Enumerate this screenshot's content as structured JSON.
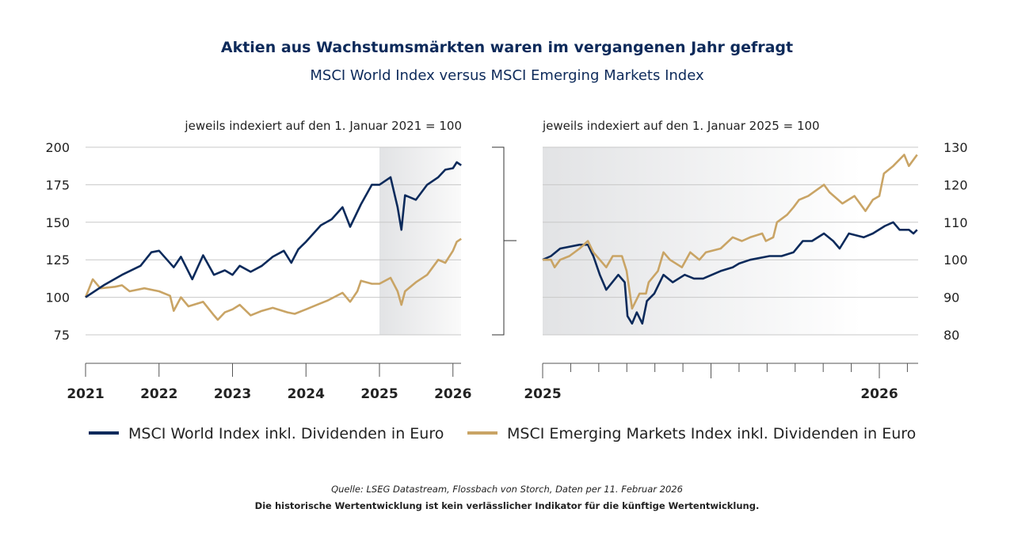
{
  "title": "Aktien aus Wachstumsmärkten waren im vergangenen Jahr gefragt",
  "subtitle": "MSCI World Index versus MSCI Emerging Markets Index",
  "colors": {
    "world": "#0b2a5b",
    "em": "#c9a465",
    "title": "#0d2a5a",
    "grid": "#c8c8c8"
  },
  "legend": {
    "world": "MSCI World Index inkl. Dividenden in Euro",
    "em": "MSCI Emerging Markets Index inkl. Dividenden in Euro"
  },
  "footer": {
    "source": "Quelle: LSEG Datastream, Flossbach von Storch, Daten per 11. Februar 2026",
    "disclaimer": "Die historische Wertentwicklung ist kein verlässlicher Indikator für die künftige Wertentwicklung."
  },
  "chart_data": [
    {
      "type": "line",
      "note": "jeweils indexiert auf den 1. Januar 2021 = 100",
      "ylim": [
        75,
        200
      ],
      "yticks": [
        "200",
        "175",
        "150",
        "125",
        "100",
        "75"
      ],
      "xticks": [
        "2021",
        "2022",
        "2023",
        "2024",
        "2025",
        "2026"
      ],
      "x_range": [
        "2021-01-01",
        "2026-02-11"
      ],
      "highlight_from": "2025-01-01",
      "grid": true,
      "series": [
        {
          "name": "MSCI World Index inkl. Dividenden in Euro",
          "key": "world",
          "x": [
            "2021-01-01",
            "2021-04-01",
            "2021-07-01",
            "2021-10-01",
            "2021-11-24",
            "2022-01-01",
            "2022-03-15",
            "2022-04-20",
            "2022-06-15",
            "2022-08-08",
            "2022-10-01",
            "2022-11-24",
            "2023-01-01",
            "2023-02-06",
            "2023-04-01",
            "2023-05-27",
            "2023-07-20",
            "2023-09-13",
            "2023-10-20",
            "2023-11-24",
            "2024-01-01",
            "2024-03-15",
            "2024-05-08",
            "2024-07-01",
            "2024-08-08",
            "2024-10-01",
            "2024-11-24",
            "2025-01-01",
            "2025-02-25",
            "2025-04-01",
            "2025-04-20",
            "2025-05-08",
            "2025-07-01",
            "2025-08-26",
            "2025-10-20",
            "2025-11-24",
            "2026-01-01",
            "2026-01-20",
            "2026-02-11"
          ],
          "y": [
            100,
            108,
            115,
            121,
            130,
            131,
            120,
            127,
            112,
            128,
            115,
            118,
            115,
            121,
            117,
            121,
            127,
            131,
            123,
            132,
            137,
            148,
            152,
            160,
            147,
            162,
            175,
            175,
            180,
            160,
            145,
            168,
            165,
            175,
            180,
            185,
            186,
            190,
            188
          ]
        },
        {
          "name": "MSCI Emerging Markets Index inkl. Dividenden in Euro",
          "key": "em",
          "x": [
            "2021-01-01",
            "2021-02-06",
            "2021-03-15",
            "2021-05-27",
            "2021-07-01",
            "2021-08-08",
            "2021-10-20",
            "2022-01-01",
            "2022-02-25",
            "2022-03-15",
            "2022-04-20",
            "2022-05-27",
            "2022-08-08",
            "2022-10-01",
            "2022-10-20",
            "2022-11-24",
            "2023-01-01",
            "2023-02-06",
            "2023-04-01",
            "2023-05-27",
            "2023-07-20",
            "2023-10-01",
            "2023-11-06",
            "2024-01-01",
            "2024-02-25",
            "2024-04-20",
            "2024-07-01",
            "2024-08-08",
            "2024-09-13",
            "2024-10-01",
            "2024-11-24",
            "2025-01-01",
            "2025-02-25",
            "2025-04-01",
            "2025-04-20",
            "2025-05-08",
            "2025-07-01",
            "2025-08-26",
            "2025-10-20",
            "2025-11-24",
            "2026-01-01",
            "2026-01-20",
            "2026-02-11"
          ],
          "y": [
            100,
            112,
            106,
            107,
            108,
            104,
            106,
            104,
            101,
            91,
            100,
            94,
            97,
            88,
            85,
            90,
            92,
            95,
            88,
            91,
            93,
            90,
            89,
            92,
            95,
            98,
            103,
            97,
            104,
            111,
            109,
            109,
            113,
            104,
            95,
            104,
            110,
            115,
            125,
            123,
            131,
            137,
            139
          ]
        }
      ]
    },
    {
      "type": "line",
      "note": "jeweils indexiert auf den 1. Januar 2025 = 100",
      "ylim": [
        80,
        130
      ],
      "yticks": [
        "130",
        "120",
        "110",
        "100",
        "90",
        "80"
      ],
      "xticks": [
        "2025",
        "2026"
      ],
      "x_range": [
        "2025-01-01",
        "2026-02-11"
      ],
      "grid": true,
      "series": [
        {
          "name": "MSCI World Index inkl. Dividenden in Euro",
          "key": "world",
          "x": [
            "2025-01-01",
            "2025-01-10",
            "2025-01-20",
            "2025-02-10",
            "2025-02-19",
            "2025-02-25",
            "2025-03-04",
            "2025-03-11",
            "2025-03-24",
            "2025-03-31",
            "2025-04-03",
            "2025-04-08",
            "2025-04-13",
            "2025-04-19",
            "2025-04-24",
            "2025-05-02",
            "2025-05-12",
            "2025-05-22",
            "2025-06-04",
            "2025-06-14",
            "2025-06-24",
            "2025-07-13",
            "2025-07-26",
            "2025-08-02",
            "2025-08-14",
            "2025-09-04",
            "2025-09-17",
            "2025-09-30",
            "2025-10-10",
            "2025-10-20",
            "2025-11-02",
            "2025-11-12",
            "2025-11-19",
            "2025-11-29",
            "2025-12-15",
            "2025-12-25",
            "2026-01-07",
            "2026-01-16",
            "2026-01-23",
            "2026-02-02",
            "2026-02-07",
            "2026-02-11"
          ],
          "y": [
            100,
            101,
            103,
            104,
            104,
            101,
            96,
            92,
            96,
            94,
            85,
            83,
            86,
            83,
            89,
            91,
            96,
            94,
            96,
            95,
            95,
            97,
            98,
            99,
            100,
            101,
            101,
            102,
            105,
            105,
            107,
            105,
            103,
            107,
            106,
            107,
            109,
            110,
            108,
            108,
            107,
            108
          ]
        },
        {
          "name": "MSCI Emerging Markets Index inkl. Dividenden in Euro",
          "key": "em",
          "x": [
            "2025-01-01",
            "2025-01-10",
            "2025-01-14",
            "2025-01-20",
            "2025-01-30",
            "2025-02-10",
            "2025-02-19",
            "2025-02-25",
            "2025-03-04",
            "2025-03-11",
            "2025-03-18",
            "2025-03-28",
            "2025-04-02",
            "2025-04-08",
            "2025-04-16",
            "2025-04-23",
            "2025-04-26",
            "2025-05-06",
            "2025-05-12",
            "2025-05-19",
            "2025-06-01",
            "2025-06-10",
            "2025-06-20",
            "2025-06-27",
            "2025-07-13",
            "2025-07-26",
            "2025-08-05",
            "2025-08-14",
            "2025-08-27",
            "2025-08-31",
            "2025-09-08",
            "2025-09-12",
            "2025-09-23",
            "2025-09-30",
            "2025-10-06",
            "2025-10-16",
            "2025-11-02",
            "2025-11-08",
            "2025-11-22",
            "2025-12-05",
            "2025-12-17",
            "2025-12-25",
            "2026-01-01",
            "2026-01-06",
            "2026-01-16",
            "2026-01-28",
            "2026-02-02",
            "2026-02-11"
          ],
          "y": [
            100,
            100,
            98,
            100,
            101,
            103,
            105,
            102,
            100,
            98,
            101,
            101,
            97,
            87,
            91,
            91,
            94,
            97,
            102,
            100,
            98,
            102,
            100,
            102,
            103,
            106,
            105,
            106,
            107,
            105,
            106,
            110,
            112,
            114,
            116,
            117,
            120,
            118,
            115,
            117,
            113,
            116,
            117,
            123,
            125,
            128,
            125,
            128
          ]
        }
      ]
    }
  ]
}
